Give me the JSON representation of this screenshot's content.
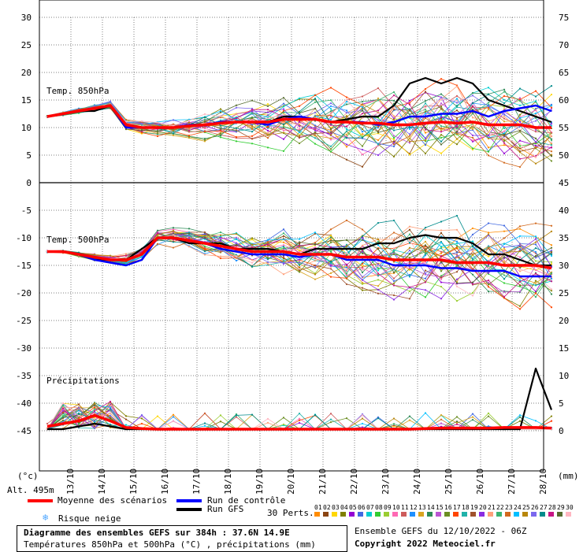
{
  "chart_data": {
    "type": "line",
    "x_ticks": [
      "13/10",
      "14/10",
      "15/10",
      "16/10",
      "17/10",
      "18/10",
      "19/10",
      "20/10",
      "21/10",
      "22/10",
      "23/10",
      "24/10",
      "25/10",
      "26/10",
      "27/10",
      "28/10"
    ],
    "left_axis": {
      "ticks": [
        30,
        25,
        20,
        15,
        10,
        5,
        0,
        -5,
        -10,
        -15,
        -20,
        -25,
        -30,
        -35,
        -40,
        -45
      ],
      "unit_label": "(°c)"
    },
    "right_axis_temp850": {
      "ticks": [
        75,
        70,
        65,
        60,
        55,
        50
      ]
    },
    "right_axis_temp500": {
      "ticks": [
        45,
        40,
        35,
        30,
        25,
        20,
        15,
        10,
        5,
        0
      ]
    },
    "right_unit_label": "(mm)",
    "panels": [
      {
        "label": "Temp. 850hPa"
      },
      {
        "label": "Temp. 500hPa"
      },
      {
        "label": "Précipitations"
      }
    ],
    "grid": true,
    "x_days": [
      0,
      0.5,
      1,
      1.5,
      2,
      2.5,
      3,
      3.5,
      4,
      4.5,
      5,
      5.5,
      6,
      6.5,
      7,
      7.5,
      8,
      8.5,
      9,
      9.5,
      10,
      10.5,
      11,
      11.5,
      12,
      12.5,
      13,
      13.5,
      14,
      14.5,
      15,
      15.5,
      16
    ],
    "series": [
      {
        "name": "Moyenne des scénarios",
        "panel": "Temp. 850hPa",
        "values": [
          12,
          12.5,
          13,
          13.5,
          14,
          10.5,
          10,
          10,
          10,
          10.3,
          10.5,
          10.8,
          11,
          11,
          11,
          11.5,
          11.5,
          11.5,
          11,
          11,
          10.8,
          10.8,
          10.5,
          10.5,
          10.8,
          11,
          10.8,
          11,
          10.5,
          10.5,
          10.5,
          10,
          10
        ]
      },
      {
        "name": "Run de contrôle",
        "panel": "Temp. 850hPa",
        "values": [
          12,
          12.5,
          13,
          13.5,
          14,
          10,
          10,
          10,
          10,
          10.5,
          10.5,
          11,
          11,
          11,
          10.5,
          11.5,
          12,
          11.5,
          11,
          11,
          11,
          10.5,
          11,
          12,
          12,
          12.5,
          12.5,
          13,
          12,
          13,
          13.5,
          14,
          13
        ]
      },
      {
        "name": "Run GFS",
        "panel": "Temp. 850hPa",
        "values": [
          12,
          12.5,
          13,
          13,
          14,
          10,
          10,
          10,
          10,
          10.5,
          10.5,
          11,
          11,
          11,
          11,
          12,
          12,
          11.5,
          11,
          11.5,
          12,
          12,
          14,
          18,
          19,
          18,
          19,
          18,
          15,
          14,
          13,
          12,
          11
        ]
      },
      {
        "name": "Moyenne des scénarios",
        "panel": "Temp. 500hPa",
        "values": [
          -12.5,
          -12.5,
          -13,
          -13.5,
          -14,
          -14,
          -13,
          -10,
          -10,
          -10.5,
          -11,
          -11.5,
          -12,
          -12.5,
          -12.5,
          -12.5,
          -13,
          -13,
          -13,
          -13.5,
          -13.5,
          -13.5,
          -14,
          -14,
          -14,
          -14,
          -14.5,
          -14.5,
          -14.5,
          -15,
          -15,
          -15,
          -15.5
        ]
      },
      {
        "name": "Run de contrôle",
        "panel": "Temp. 500hPa",
        "values": [
          -12.5,
          -12.5,
          -13,
          -14,
          -14.5,
          -15,
          -14,
          -10,
          -10,
          -10.5,
          -11,
          -12,
          -12.5,
          -13,
          -13,
          -13,
          -13.5,
          -13,
          -13,
          -14,
          -14,
          -14,
          -15,
          -15,
          -15,
          -15.5,
          -15.5,
          -16,
          -16,
          -16,
          -17,
          -17,
          -17
        ]
      },
      {
        "name": "Run GFS",
        "panel": "Temp. 500hPa",
        "values": [
          -12.5,
          -12.5,
          -13,
          -14,
          -14,
          -14,
          -12,
          -10,
          -10,
          -11,
          -11,
          -11,
          -12,
          -12,
          -12,
          -12.5,
          -13,
          -12,
          -12,
          -12,
          -12,
          -11,
          -11,
          -10,
          -9.5,
          -10,
          -10,
          -11,
          -13,
          -13,
          -14,
          -15,
          -15
        ]
      },
      {
        "name": "Moyenne des scénarios",
        "panel": "Précipitations",
        "values": [
          0.5,
          1,
          1.5,
          2.5,
          1.5,
          0.3,
          0.1,
          0,
          0,
          0,
          0,
          0,
          0,
          0,
          0,
          0,
          0,
          0,
          0,
          0,
          0,
          0,
          0,
          0,
          0.1,
          0.2,
          0.2,
          0.2,
          0.2,
          0.3,
          0.3,
          0.3,
          0.2
        ]
      },
      {
        "name": "Run GFS",
        "panel": "Précipitations",
        "values": [
          0,
          0,
          0.5,
          1,
          0.5,
          0,
          0,
          0,
          0,
          0,
          0,
          0,
          0,
          0,
          0,
          0,
          0,
          0,
          0,
          0,
          0,
          0,
          0,
          0,
          0,
          0,
          0,
          0,
          0,
          0,
          0,
          11,
          3.5
        ]
      }
    ]
  },
  "legend": {
    "alt": "Alt. 495m",
    "mean": "Moyenne des scénarios",
    "control": "Run de contrôle",
    "gfs": "Run GFS",
    "snow": "Risque neige",
    "perts_label": "30 Perts.",
    "pert_numbers": [
      "01",
      "02",
      "03",
      "04",
      "05",
      "06",
      "07",
      "08",
      "09",
      "10",
      "11",
      "12",
      "13",
      "14",
      "15",
      "16",
      "17",
      "18",
      "19",
      "20",
      "21",
      "22",
      "23",
      "24",
      "25",
      "26",
      "27",
      "28",
      "29",
      "30"
    ]
  },
  "colors": {
    "mean": "#ff0000",
    "control": "#0000ff",
    "gfs": "#000000",
    "snow": "#4ea6ff",
    "grid": "#000000",
    "perts": [
      "#ff8c00",
      "#8b4513",
      "#ffd700",
      "#808000",
      "#9400d3",
      "#4169e1",
      "#00ced1",
      "#32cd32",
      "#9acd32",
      "#ff69b4",
      "#cd5c5c",
      "#1e90ff",
      "#daa520",
      "#2e8b57",
      "#ba55d3",
      "#6b8e23",
      "#ff4500",
      "#20b2aa",
      "#a0522d",
      "#8a2be2",
      "#ffa07a",
      "#3cb371",
      "#d2691e",
      "#00bfff",
      "#b8860b",
      "#7b68ee",
      "#008b8b",
      "#c71585",
      "#556b2f",
      "#ffb6c1"
    ]
  },
  "info": {
    "left_line1": "Diagramme des ensembles GEFS sur 384h : 37.6N 14.9E",
    "left_line2": "Températures 850hPa et 500hPa (°C) , précipitations (mm)",
    "right_line1": "Ensemble GEFS du 12/10/2022 - 06Z",
    "right_line2": "Copyright 2022 Meteociel.fr"
  }
}
